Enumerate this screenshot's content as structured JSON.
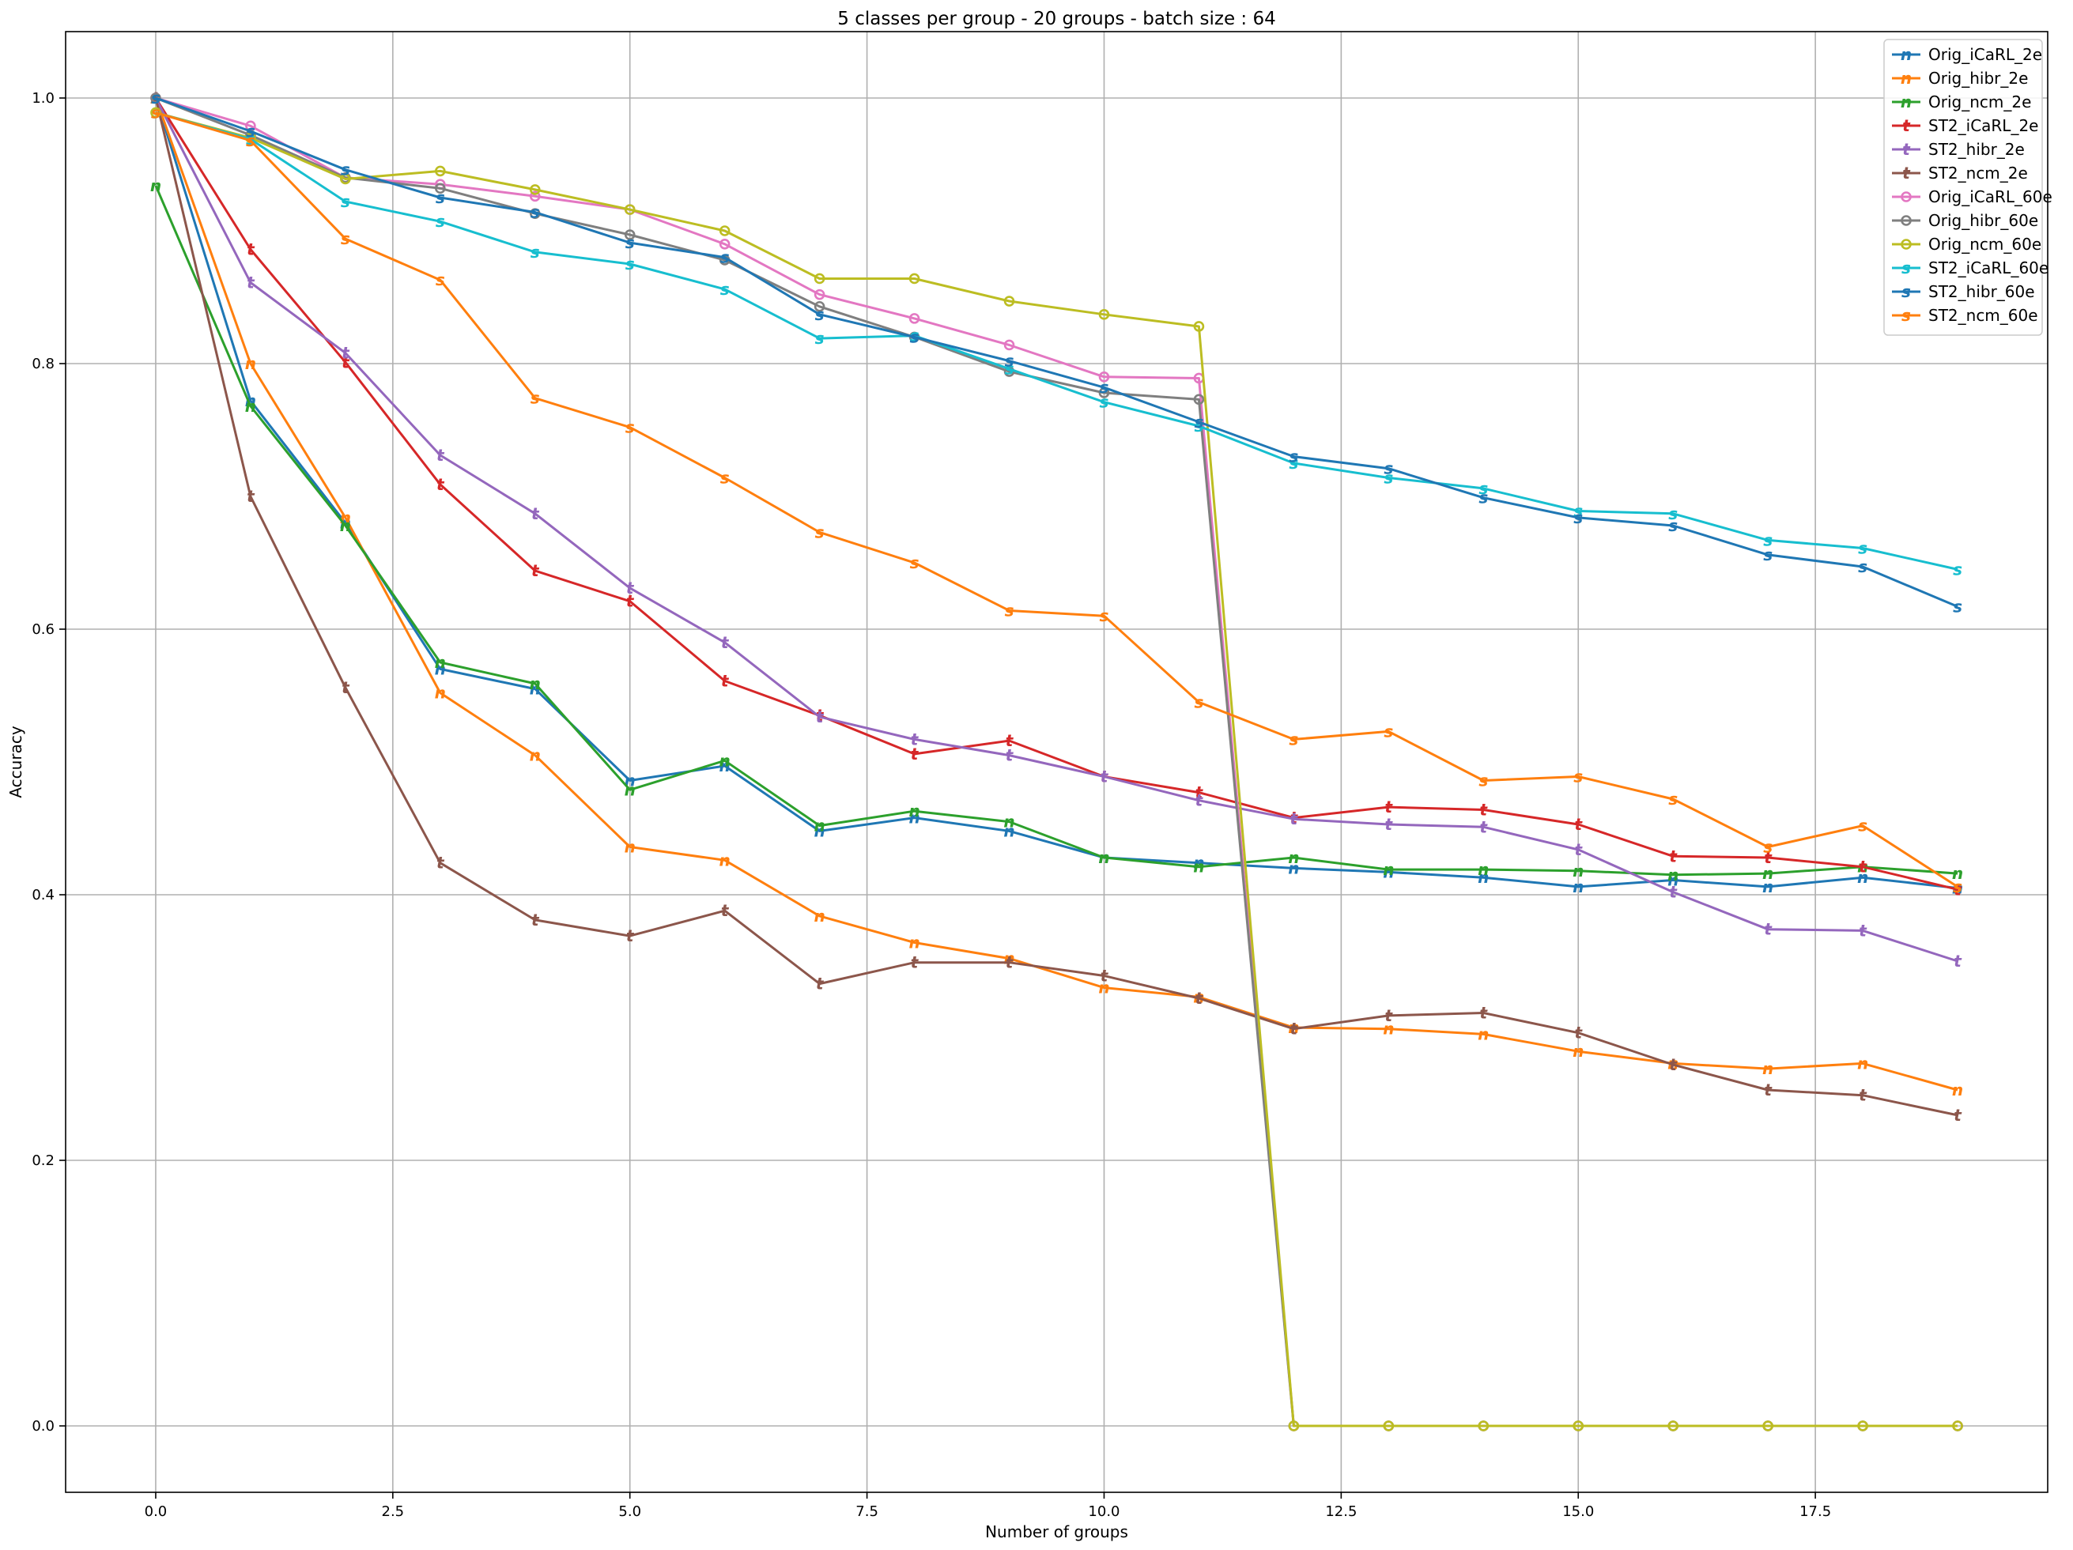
{
  "chart_data": {
    "type": "line",
    "title": "5 classes per group - 20 groups - batch size : 64",
    "xlabel": "Number of groups",
    "ylabel": "Accuracy",
    "xlim": [
      -0.95,
      19.95
    ],
    "ylim": [
      -0.05,
      1.05
    ],
    "xticks": [
      0.0,
      2.5,
      5.0,
      7.5,
      10.0,
      12.5,
      15.0,
      17.5
    ],
    "xtick_labels": [
      "0.0",
      "2.5",
      "5.0",
      "7.5",
      "10.0",
      "12.5",
      "15.0",
      "17.5"
    ],
    "yticks": [
      0.0,
      0.2,
      0.4,
      0.6,
      0.8,
      1.0
    ],
    "ytick_labels": [
      "0.0",
      "0.2",
      "0.4",
      "0.6",
      "0.8",
      "1.0"
    ],
    "grid": true,
    "legend_position": "top-right",
    "x": [
      0,
      1,
      2,
      3,
      4,
      5,
      6,
      7,
      8,
      9,
      10,
      11,
      12,
      13,
      14,
      15,
      16,
      17,
      18,
      19
    ],
    "series": [
      {
        "name": "Orig_iCaRL_2e",
        "color": "#1f77b4",
        "marker": "n",
        "values": [
          1.0,
          0.772,
          0.68,
          0.57,
          0.555,
          0.486,
          0.497,
          0.448,
          0.458,
          0.448,
          0.428,
          0.424,
          0.42,
          0.417,
          0.413,
          0.406,
          0.411,
          0.406,
          0.413,
          0.405
        ]
      },
      {
        "name": "Orig_hibr_2e",
        "color": "#ff7f0e",
        "marker": "n",
        "values": [
          1.0,
          0.8,
          0.684,
          0.552,
          0.505,
          0.436,
          0.426,
          0.384,
          0.364,
          0.352,
          0.33,
          0.323,
          0.3,
          0.299,
          0.295,
          0.282,
          0.273,
          0.269,
          0.273,
          0.253
        ]
      },
      {
        "name": "Orig_ncm_2e",
        "color": "#2ca02c",
        "marker": "n",
        "values": [
          0.934,
          0.768,
          0.678,
          0.575,
          0.559,
          0.479,
          0.501,
          0.452,
          0.463,
          0.455,
          0.428,
          0.421,
          0.428,
          0.419,
          0.419,
          0.418,
          0.415,
          0.416,
          0.421,
          0.416
        ]
      },
      {
        "name": "ST2_iCaRL_2e",
        "color": "#d62728",
        "marker": "t",
        "values": [
          1.0,
          0.886,
          0.801,
          0.709,
          0.644,
          0.621,
          0.561,
          0.535,
          0.506,
          0.516,
          0.489,
          0.477,
          0.458,
          0.466,
          0.464,
          0.453,
          0.429,
          0.428,
          0.421,
          0.404
        ]
      },
      {
        "name": "ST2_hibr_2e",
        "color": "#9467bd",
        "marker": "t",
        "values": [
          1.0,
          0.861,
          0.808,
          0.731,
          0.687,
          0.631,
          0.59,
          0.534,
          0.517,
          0.505,
          0.489,
          0.471,
          0.457,
          0.453,
          0.451,
          0.434,
          0.402,
          0.374,
          0.373,
          0.35
        ]
      },
      {
        "name": "ST2_ncm_2e",
        "color": "#8c564b",
        "marker": "t",
        "values": [
          1.0,
          0.7,
          0.556,
          0.424,
          0.381,
          0.369,
          0.388,
          0.333,
          0.349,
          0.349,
          0.339,
          0.322,
          0.299,
          0.309,
          0.311,
          0.296,
          0.272,
          0.253,
          0.249,
          0.234
        ]
      },
      {
        "name": "Orig_iCaRL_60e",
        "color": "#e377c2",
        "marker": "o",
        "values": [
          1.0,
          0.979,
          0.94,
          0.935,
          0.926,
          0.916,
          0.89,
          0.852,
          0.834,
          0.814,
          0.79,
          0.789,
          0.0,
          0.0,
          0.0,
          0.0,
          0.0,
          0.0,
          0.0,
          0.0
        ]
      },
      {
        "name": "Orig_hibr_60e",
        "color": "#7f7f7f",
        "marker": "o",
        "values": [
          1.0,
          0.972,
          0.94,
          0.932,
          0.913,
          0.897,
          0.878,
          0.843,
          0.82,
          0.794,
          0.778,
          0.773,
          0.0,
          0.0,
          0.0,
          0.0,
          0.0,
          0.0,
          0.0,
          0.0
        ]
      },
      {
        "name": "Orig_ncm_60e",
        "color": "#bcbd22",
        "marker": "o",
        "values": [
          0.989,
          0.97,
          0.939,
          0.945,
          0.931,
          0.916,
          0.9,
          0.864,
          0.864,
          0.847,
          0.837,
          0.828,
          0.0,
          0.0,
          0.0,
          0.0,
          0.0,
          0.0,
          0.0,
          0.0
        ]
      },
      {
        "name": "ST2_iCaRL_60e",
        "color": "#17becf",
        "marker": "s",
        "values": [
          0.989,
          0.969,
          0.922,
          0.907,
          0.884,
          0.875,
          0.856,
          0.819,
          0.821,
          0.796,
          0.771,
          0.753,
          0.725,
          0.714,
          0.706,
          0.689,
          0.687,
          0.667,
          0.661,
          0.645
        ]
      },
      {
        "name": "ST2_hibr_60e",
        "color": "#1f77b4",
        "marker": "s",
        "values": [
          1.0,
          0.975,
          0.946,
          0.925,
          0.914,
          0.891,
          0.88,
          0.837,
          0.82,
          0.802,
          0.782,
          0.756,
          0.73,
          0.721,
          0.699,
          0.684,
          0.678,
          0.656,
          0.647,
          0.617
        ]
      },
      {
        "name": "ST2_ncm_60e",
        "color": "#ff7f0e",
        "marker": "s",
        "values": [
          0.989,
          0.968,
          0.894,
          0.863,
          0.774,
          0.752,
          0.714,
          0.673,
          0.65,
          0.614,
          0.61,
          0.545,
          0.517,
          0.523,
          0.486,
          0.489,
          0.472,
          0.436,
          0.452,
          0.406
        ]
      }
    ]
  }
}
